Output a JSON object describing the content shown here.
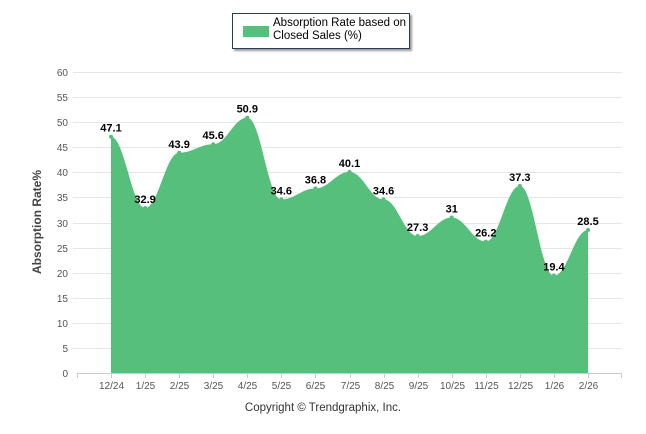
{
  "chart_data": {
    "type": "area",
    "title": "",
    "legend": {
      "label": "Absorption Rate based on Closed Sales (%)",
      "position": "top-center"
    },
    "xlabel": "",
    "ylabel": "Absorption Rate%",
    "ylim": [
      0,
      60
    ],
    "yticks": [
      0,
      5,
      10,
      15,
      20,
      25,
      30,
      35,
      40,
      45,
      50,
      55,
      60
    ],
    "grid": true,
    "categories": [
      "12/24",
      "1/25",
      "2/25",
      "3/25",
      "4/25",
      "5/25",
      "6/25",
      "7/25",
      "8/25",
      "9/25",
      "10/25",
      "11/25",
      "12/25",
      "1/26",
      "2/26"
    ],
    "series": [
      {
        "name": "Absorption Rate based on Closed Sales (%)",
        "values": [
          47.1,
          32.9,
          43.9,
          45.6,
          50.9,
          34.6,
          36.8,
          40.1,
          34.6,
          27.3,
          31,
          26.2,
          37.3,
          19.4,
          28.5
        ],
        "labels": [
          "47.1",
          "32.9",
          "43.9",
          "45.6",
          "50.9",
          "34.6",
          "36.8",
          "40.1",
          "34.6",
          "27.3",
          "31",
          "26.2",
          "37.3",
          "19.4",
          "28.5"
        ]
      }
    ],
    "colors": {
      "fill": "#55bf7b",
      "grid": "#e6e6e6",
      "axis": "#cccccc"
    }
  },
  "legend_label": "Absorption Rate based on Closed Sales (%)",
  "copyright": "Copyright © Trendgraphix, Inc."
}
